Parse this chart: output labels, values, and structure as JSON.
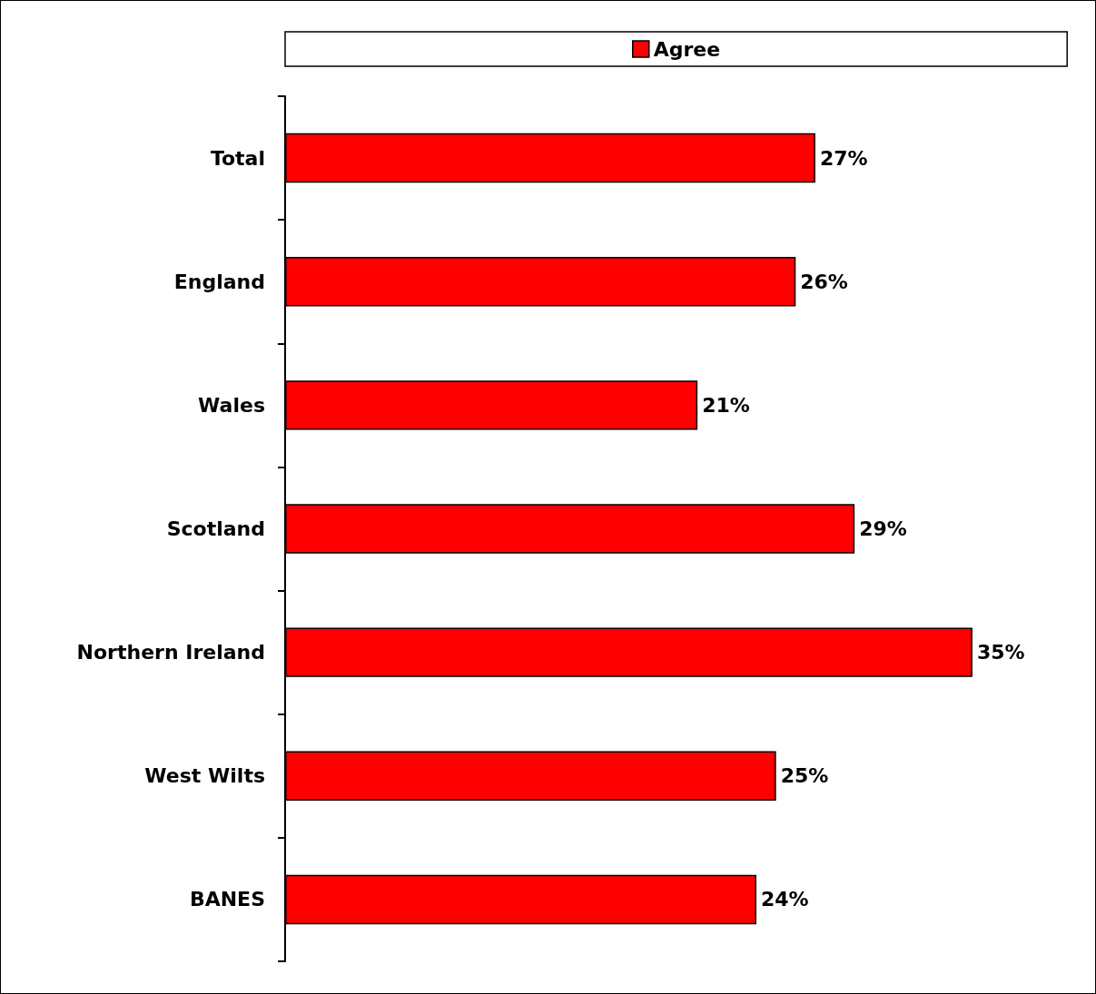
{
  "chart_data": {
    "type": "bar",
    "orientation": "horizontal",
    "categories": [
      "Total",
      "England",
      "Wales",
      "Scotland",
      "Northern Ireland",
      "West Wilts",
      "BANES"
    ],
    "series": [
      {
        "name": "Agree",
        "color": "#ff0000",
        "values": [
          27,
          26,
          21,
          29,
          35,
          25,
          24
        ],
        "value_labels": [
          "27%",
          "26%",
          "21%",
          "29%",
          "35%",
          "25%",
          "24%"
        ]
      }
    ],
    "legend": "top"
  }
}
